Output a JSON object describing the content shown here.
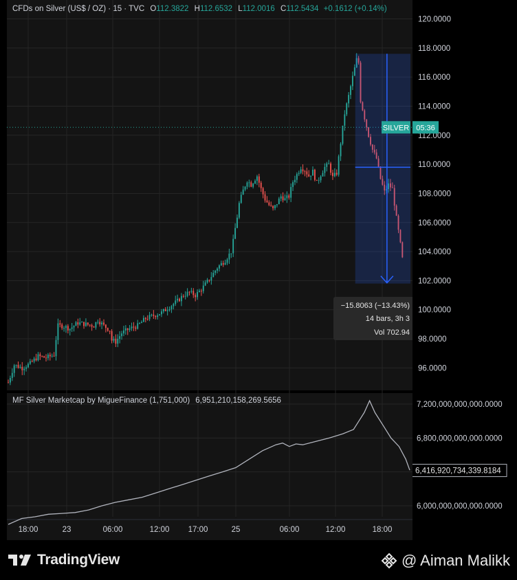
{
  "main_legend": {
    "title": "CFDs on Silver (US$ / OZ) · 15 · TVC",
    "o_label": "O",
    "o_value": "112.3822",
    "h_label": "H",
    "h_value": "112.6532",
    "l_label": "L",
    "l_value": "112.0016",
    "c_label": "C",
    "c_value": "112.5434",
    "change": "+0.1612 (+0.14%)"
  },
  "indicator_legend": {
    "title": "MF Silver Marketcap by MigueFinance (1,751,000)",
    "value": "6,951,210,158,269.5656"
  },
  "symbol_tag": {
    "symbol": "SILVER",
    "countdown": "05:36"
  },
  "measure_tooltip": {
    "change": "−15.8063 (−13.43%)",
    "bars": "14 bars, 3h 3",
    "volume": "Vol 702.94"
  },
  "marketcap_tag": "6,416,920,734,339.8184",
  "footer": {
    "brand": "TradingView",
    "watermark": "@ Aiman Malikk"
  },
  "colors": {
    "up": "#26a69a",
    "down": "#ef5350",
    "measure": "#2962ff",
    "line": "#b2b5be",
    "background": "#141414"
  },
  "chart_data": [
    {
      "type": "candlestick",
      "title": "CFDs on Silver (US$ / OZ) · 15 · TVC",
      "interval": "15",
      "x_tick_labels": [
        "18:00",
        "23",
        "06:00",
        "12:00",
        "17:00",
        "25",
        "06:00",
        "12:00",
        "18:00"
      ],
      "y_tick_labels": [
        "96.0000",
        "98.0000",
        "100.0000",
        "102.0000",
        "104.0000",
        "106.0000",
        "108.0000",
        "110.0000",
        "112.0000",
        "114.0000",
        "116.0000",
        "118.0000",
        "120.0000"
      ],
      "ylim": [
        94.6,
        121.3
      ],
      "last_price": 112.5434,
      "close_path": [
        [
          0,
          95.0
        ],
        [
          3,
          96.2
        ],
        [
          7,
          96.0
        ],
        [
          11,
          96.3
        ],
        [
          15,
          96.8
        ],
        [
          19,
          96.7
        ],
        [
          23,
          96.9
        ],
        [
          24,
          98.0
        ],
        [
          25,
          98.9
        ],
        [
          27,
          98.9
        ],
        [
          31,
          98.7
        ],
        [
          35,
          99.1
        ],
        [
          39,
          99.0
        ],
        [
          43,
          98.9
        ],
        [
          45,
          99.3
        ],
        [
          48,
          98.9
        ],
        [
          51,
          98.6
        ],
        [
          52,
          97.9
        ],
        [
          54,
          97.8
        ],
        [
          57,
          98.4
        ],
        [
          61,
          98.7
        ],
        [
          65,
          98.9
        ],
        [
          69,
          99.4
        ],
        [
          73,
          99.6
        ],
        [
          77,
          99.8
        ],
        [
          81,
          100.2
        ],
        [
          85,
          100.6
        ],
        [
          88,
          101.0
        ],
        [
          91,
          101.2
        ],
        [
          94,
          101.0
        ],
        [
          97,
          101.4
        ],
        [
          101,
          102.1
        ],
        [
          105,
          102.9
        ],
        [
          109,
          103.4
        ],
        [
          112,
          104.0
        ],
        [
          113,
          104.7
        ],
        [
          114,
          105.6
        ],
        [
          115,
          106.4
        ],
        [
          116,
          107.3
        ],
        [
          118,
          108.2
        ],
        [
          120,
          108.9
        ],
        [
          122,
          108.6
        ],
        [
          124,
          109.0
        ],
        [
          125,
          109.2
        ],
        [
          127,
          108.3
        ],
        [
          129,
          107.6
        ],
        [
          131,
          107.2
        ],
        [
          133,
          106.9
        ],
        [
          134,
          107.1
        ],
        [
          137,
          107.8
        ],
        [
          139,
          107.6
        ],
        [
          141,
          107.8
        ],
        [
          143,
          108.8
        ],
        [
          145,
          109.3
        ],
        [
          147,
          109.8
        ],
        [
          149,
          109.6
        ],
        [
          151,
          109.2
        ],
        [
          153,
          109.5
        ],
        [
          155,
          108.7
        ],
        [
          157,
          109.3
        ],
        [
          159,
          109.8
        ],
        [
          161,
          110.0
        ],
        [
          163,
          109.1
        ],
        [
          165,
          109.4
        ],
        [
          167,
          111.5
        ],
        [
          168,
          112.5
        ],
        [
          169,
          113.5
        ],
        [
          171,
          114.7
        ],
        [
          173,
          116.0
        ],
        [
          175,
          117.2
        ],
        [
          176,
          117.0
        ],
        [
          177,
          114.4
        ],
        [
          179,
          113.2
        ],
        [
          181,
          112.0
        ],
        [
          183,
          111.0
        ],
        [
          185,
          110.4
        ],
        [
          187,
          109.0
        ],
        [
          189,
          108.1
        ],
        [
          191,
          108.6
        ],
        [
          193,
          108.3
        ],
        [
          195,
          106.3
        ],
        [
          197,
          104.5
        ],
        [
          198,
          103.5
        ]
      ],
      "measure_range": {
        "from_bar": 175,
        "to_bar": 198,
        "from_price": 117.6,
        "to_price": 101.8
      }
    },
    {
      "type": "line",
      "title": "MF Silver Marketcap by MigueFinance (1,751,000)",
      "y_tick_labels": [
        "6,000,000,000,000.0000",
        "6,400,000,000,000.0000",
        "6,800,000,000,000.0000",
        "7,200,000,000,000.0000"
      ],
      "ylim": [
        5.87,
        7.33
      ],
      "y_unit_scale": 1000000000000,
      "last_value": 6.4169,
      "points": [
        [
          0,
          5.78
        ],
        [
          10,
          5.85
        ],
        [
          20,
          5.87
        ],
        [
          30,
          5.9
        ],
        [
          40,
          5.91
        ],
        [
          50,
          5.92
        ],
        [
          60,
          5.95
        ],
        [
          70,
          6.0
        ],
        [
          80,
          6.04
        ],
        [
          90,
          6.07
        ],
        [
          100,
          6.1
        ],
        [
          110,
          6.15
        ],
        [
          120,
          6.2
        ],
        [
          130,
          6.25
        ],
        [
          140,
          6.3
        ],
        [
          150,
          6.35
        ],
        [
          160,
          6.4
        ],
        [
          170,
          6.45
        ],
        [
          180,
          6.55
        ],
        [
          190,
          6.65
        ],
        [
          200,
          6.72
        ],
        [
          205,
          6.74
        ],
        [
          210,
          6.7
        ],
        [
          215,
          6.73
        ],
        [
          220,
          6.72
        ],
        [
          230,
          6.76
        ],
        [
          240,
          6.8
        ],
        [
          250,
          6.85
        ],
        [
          258,
          6.9
        ],
        [
          262,
          7.0
        ],
        [
          266,
          7.1
        ],
        [
          270,
          7.24
        ],
        [
          274,
          7.1
        ],
        [
          280,
          6.95
        ],
        [
          286,
          6.8
        ],
        [
          292,
          6.7
        ],
        [
          297,
          6.55
        ],
        [
          300,
          6.42
        ]
      ]
    }
  ]
}
